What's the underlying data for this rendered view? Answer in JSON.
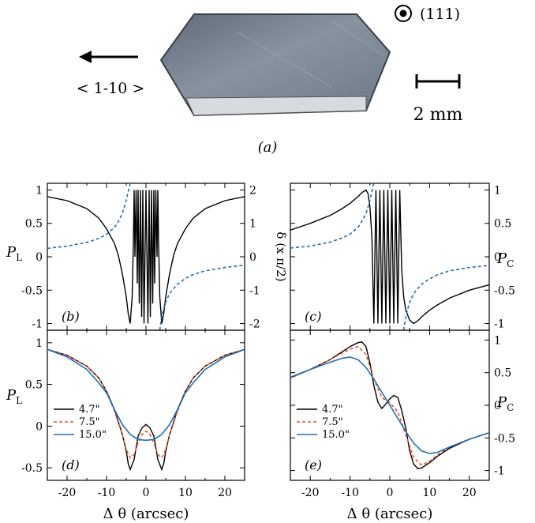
{
  "photo": {
    "caption": "(a)",
    "direction_label": "< 1-10 >",
    "plane_label": "(111)",
    "scale_label": "2 mm"
  },
  "colors": {
    "curve_black": "#000000",
    "curve_blue": "#1f6fb2",
    "curve_red": "#e5532c",
    "crystal_face": "#7f8a99",
    "crystal_edge": "#cfd4da"
  },
  "chart_data": [
    {
      "id": "b",
      "type": "line",
      "panel_label": "(b)",
      "ylabel": "P_L",
      "y2label": "δ (x π/2)",
      "xlim": [
        -25,
        25
      ],
      "ylim": [
        -1.1,
        1.1
      ],
      "y2lim": [
        -2.2,
        2.2
      ],
      "yticks": [
        "1",
        "0.5",
        "0",
        "-0.5",
        "-1"
      ],
      "y2ticks": [
        "2",
        "1",
        "0",
        "-1",
        "-2"
      ],
      "series": [
        {
          "style": "solid",
          "color": "#000000",
          "axis": "left",
          "x": [
            -25,
            -20,
            -15,
            -12,
            -10,
            -8,
            -7,
            -6,
            -5,
            -4.5,
            -4,
            -3.5,
            -3.2,
            -3,
            -2.8,
            -2.5,
            -2.2,
            -2,
            -1.7,
            -1.4,
            -1.1,
            -0.8,
            -0.5,
            0,
            0.5,
            0.8,
            1.1,
            1.4,
            1.7,
            2,
            2.2,
            2.5,
            2.8,
            3,
            3.2,
            3.5,
            4,
            4.5,
            5,
            6,
            7,
            8,
            10,
            12,
            15,
            20,
            25
          ],
          "y": [
            0.9,
            0.84,
            0.72,
            0.58,
            0.42,
            0.2,
            0.02,
            -0.25,
            -0.6,
            -0.85,
            -1.0,
            -0.6,
            0.2,
            1.0,
            0.0,
            1.0,
            -0.4,
            1.0,
            -0.7,
            1.0,
            -0.9,
            1.0,
            -1.0,
            1.0,
            -1.0,
            1.0,
            -0.9,
            1.0,
            -0.7,
            1.0,
            -0.4,
            1.0,
            0.0,
            1.0,
            0.2,
            -0.6,
            -1.0,
            -0.85,
            -0.6,
            -0.25,
            0.02,
            0.2,
            0.42,
            0.58,
            0.72,
            0.84,
            0.9
          ]
        },
        {
          "style": "dashed",
          "color": "#1f6fb2",
          "axis": "right",
          "x": [
            -25,
            -20,
            -15,
            -12,
            -10,
            -8,
            -7,
            -6,
            -5.5,
            -5,
            -4.6,
            -4.3,
            -4.1,
            -4
          ],
          "y": [
            0.25,
            0.32,
            0.43,
            0.55,
            0.67,
            0.88,
            1.05,
            1.3,
            1.48,
            1.7,
            1.9,
            2.05,
            2.15,
            2.2
          ]
        },
        {
          "style": "dashed",
          "color": "#1f6fb2",
          "axis": "right",
          "x": [
            3.5,
            3.6,
            3.8,
            4.1,
            4.5,
            5,
            6,
            7,
            8,
            10,
            12,
            15,
            20,
            25
          ],
          "y": [
            -2.2,
            -2.1,
            -1.95,
            -1.75,
            -1.55,
            -1.35,
            -1.1,
            -0.95,
            -0.82,
            -0.65,
            -0.53,
            -0.42,
            -0.32,
            -0.25
          ]
        }
      ]
    },
    {
      "id": "c",
      "type": "line",
      "panel_label": "(c)",
      "ylabel": "P_C",
      "xlim": [
        -25,
        25
      ],
      "ylim": [
        -1.1,
        1.1
      ],
      "yticks": [
        "1",
        "0.5",
        "0",
        "-0.5",
        "-1"
      ],
      "series": [
        {
          "style": "solid",
          "color": "#000000",
          "x": [
            -25,
            -20,
            -15,
            -12,
            -10,
            -8,
            -7,
            -6,
            -5.5,
            -5,
            -4.5,
            -4,
            -3.5,
            -3,
            -2.5,
            -2,
            -1.5,
            -1,
            -0.5,
            0,
            0.5,
            1,
            1.5,
            2,
            2.5,
            3,
            3.5,
            4,
            5,
            6,
            7,
            8,
            10,
            12,
            15,
            20,
            25
          ],
          "y": [
            0.4,
            0.5,
            0.62,
            0.72,
            0.8,
            0.9,
            0.96,
            1.0,
            0.95,
            0.75,
            0.3,
            -1.0,
            1.0,
            -1.0,
            1.0,
            -1.0,
            1.0,
            -1.0,
            1.0,
            -1.0,
            1.0,
            -1.0,
            1.0,
            -1.0,
            1.0,
            -0.2,
            -0.6,
            -0.8,
            -0.95,
            -1.0,
            -0.96,
            -0.9,
            -0.8,
            -0.72,
            -0.62,
            -0.5,
            -0.42
          ]
        },
        {
          "style": "dashed",
          "color": "#1f6fb2",
          "x": [
            -25,
            -20,
            -15,
            -12,
            -10,
            -8,
            -7,
            -6,
            -5.5,
            -5,
            -4.6,
            -4.3,
            -4.1,
            -4
          ],
          "y": [
            0.13,
            0.16,
            0.22,
            0.28,
            0.34,
            0.44,
            0.53,
            0.65,
            0.74,
            0.85,
            0.95,
            1.03,
            1.08,
            1.1
          ]
        },
        {
          "style": "dashed",
          "color": "#1f6fb2",
          "x": [
            3.5,
            3.6,
            3.8,
            4.1,
            4.5,
            5,
            6,
            7,
            8,
            10,
            12,
            15,
            20,
            25
          ],
          "y": [
            -1.1,
            -1.05,
            -0.98,
            -0.88,
            -0.78,
            -0.68,
            -0.55,
            -0.48,
            -0.41,
            -0.33,
            -0.27,
            -0.21,
            -0.16,
            -0.13
          ]
        }
      ]
    },
    {
      "id": "d",
      "type": "line",
      "panel_label": "(d)",
      "ylabel": "P_L",
      "xlabel": "Δ θ (arcsec)",
      "xlim": [
        -25,
        25
      ],
      "ylim": [
        -0.65,
        1.15
      ],
      "yticks": [
        "1",
        "0.5",
        "0",
        "-0.5"
      ],
      "xticks": [
        "-20",
        "-10",
        "0",
        "10",
        "20"
      ],
      "legend": [
        "4.7\"",
        "7.5\"",
        "15.0\""
      ],
      "series": [
        {
          "name": "4.7\"",
          "style": "solid",
          "color": "#000000",
          "x": [
            -25,
            -20,
            -15,
            -12,
            -10,
            -8,
            -6,
            -5,
            -4.5,
            -4,
            -3,
            -2,
            -1,
            0,
            1,
            2,
            3,
            4,
            4.5,
            5,
            6,
            8,
            10,
            12,
            15,
            20,
            25
          ],
          "y": [
            0.92,
            0.85,
            0.72,
            0.58,
            0.42,
            0.2,
            -0.1,
            -0.3,
            -0.45,
            -0.52,
            -0.4,
            -0.12,
            -0.02,
            0.02,
            -0.02,
            -0.12,
            -0.4,
            -0.52,
            -0.45,
            -0.3,
            -0.1,
            0.2,
            0.42,
            0.58,
            0.72,
            0.85,
            0.92
          ]
        },
        {
          "name": "7.5\"",
          "style": "dashed",
          "color": "#e5532c",
          "x": [
            -25,
            -20,
            -15,
            -12,
            -10,
            -8,
            -6,
            -5,
            -4,
            -3,
            -2,
            -1,
            0,
            1,
            2,
            3,
            4,
            5,
            6,
            8,
            10,
            12,
            15,
            20,
            25
          ],
          "y": [
            0.92,
            0.85,
            0.72,
            0.58,
            0.42,
            0.18,
            -0.1,
            -0.28,
            -0.38,
            -0.34,
            -0.2,
            -0.1,
            -0.06,
            -0.1,
            -0.2,
            -0.34,
            -0.38,
            -0.28,
            -0.1,
            0.18,
            0.42,
            0.58,
            0.72,
            0.85,
            0.92
          ]
        },
        {
          "name": "15.0\"",
          "style": "solid",
          "color": "#1f6fb2",
          "x": [
            -25,
            -20,
            -15,
            -12,
            -10,
            -8,
            -6,
            -4,
            -2,
            0,
            2,
            4,
            6,
            8,
            10,
            12,
            15,
            20,
            25
          ],
          "y": [
            0.92,
            0.83,
            0.68,
            0.52,
            0.4,
            0.2,
            0.02,
            -0.1,
            -0.16,
            -0.17,
            -0.16,
            -0.1,
            0.02,
            0.2,
            0.4,
            0.52,
            0.68,
            0.83,
            0.92
          ]
        }
      ]
    },
    {
      "id": "e",
      "type": "line",
      "panel_label": "(e)",
      "ylabel": "P_C",
      "xlabel": "Δ θ (arcsec)",
      "xlim": [
        -25,
        25
      ],
      "ylim": [
        -1.15,
        1.15
      ],
      "yticks": [
        "1",
        "0.5",
        "0",
        "-0.5",
        "-1"
      ],
      "xticks": [
        "-20",
        "-10",
        "0",
        "10",
        "20"
      ],
      "legend": [
        "4.7\"",
        "7.5\"",
        "15.0\""
      ],
      "series": [
        {
          "name": "4.7\"",
          "style": "solid",
          "color": "#000000",
          "x": [
            -25,
            -20,
            -15,
            -12,
            -10,
            -8,
            -7,
            -6,
            -5,
            -4,
            -3,
            -2,
            -1,
            0,
            1,
            2,
            3,
            4,
            5,
            6,
            7,
            8,
            10,
            12,
            15,
            20,
            25
          ],
          "y": [
            0.42,
            0.55,
            0.7,
            0.82,
            0.9,
            0.96,
            0.97,
            0.9,
            0.65,
            0.3,
            0.05,
            -0.05,
            0.02,
            0.1,
            0.15,
            0.12,
            -0.08,
            -0.35,
            -0.7,
            -0.9,
            -0.97,
            -0.96,
            -0.88,
            -0.78,
            -0.66,
            -0.52,
            -0.42
          ]
        },
        {
          "name": "7.5\"",
          "style": "dashed",
          "color": "#e5532c",
          "x": [
            -25,
            -20,
            -15,
            -12,
            -10,
            -8,
            -6,
            -4,
            -2,
            0,
            2,
            4,
            6,
            8,
            10,
            12,
            15,
            20,
            25
          ],
          "y": [
            0.42,
            0.55,
            0.7,
            0.8,
            0.86,
            0.9,
            0.78,
            0.4,
            0.12,
            0.04,
            -0.1,
            -0.45,
            -0.8,
            -0.92,
            -0.86,
            -0.76,
            -0.64,
            -0.52,
            -0.42
          ]
        },
        {
          "name": "15.0\"",
          "style": "solid",
          "color": "#1f6fb2",
          "x": [
            -25,
            -20,
            -15,
            -12,
            -10,
            -8,
            -6,
            -4,
            -2,
            0,
            2,
            4,
            6,
            8,
            10,
            12,
            15,
            20,
            25
          ],
          "y": [
            0.43,
            0.55,
            0.66,
            0.72,
            0.74,
            0.7,
            0.58,
            0.4,
            0.2,
            0.0,
            -0.2,
            -0.4,
            -0.58,
            -0.7,
            -0.74,
            -0.72,
            -0.64,
            -0.52,
            -0.42
          ]
        }
      ]
    }
  ]
}
